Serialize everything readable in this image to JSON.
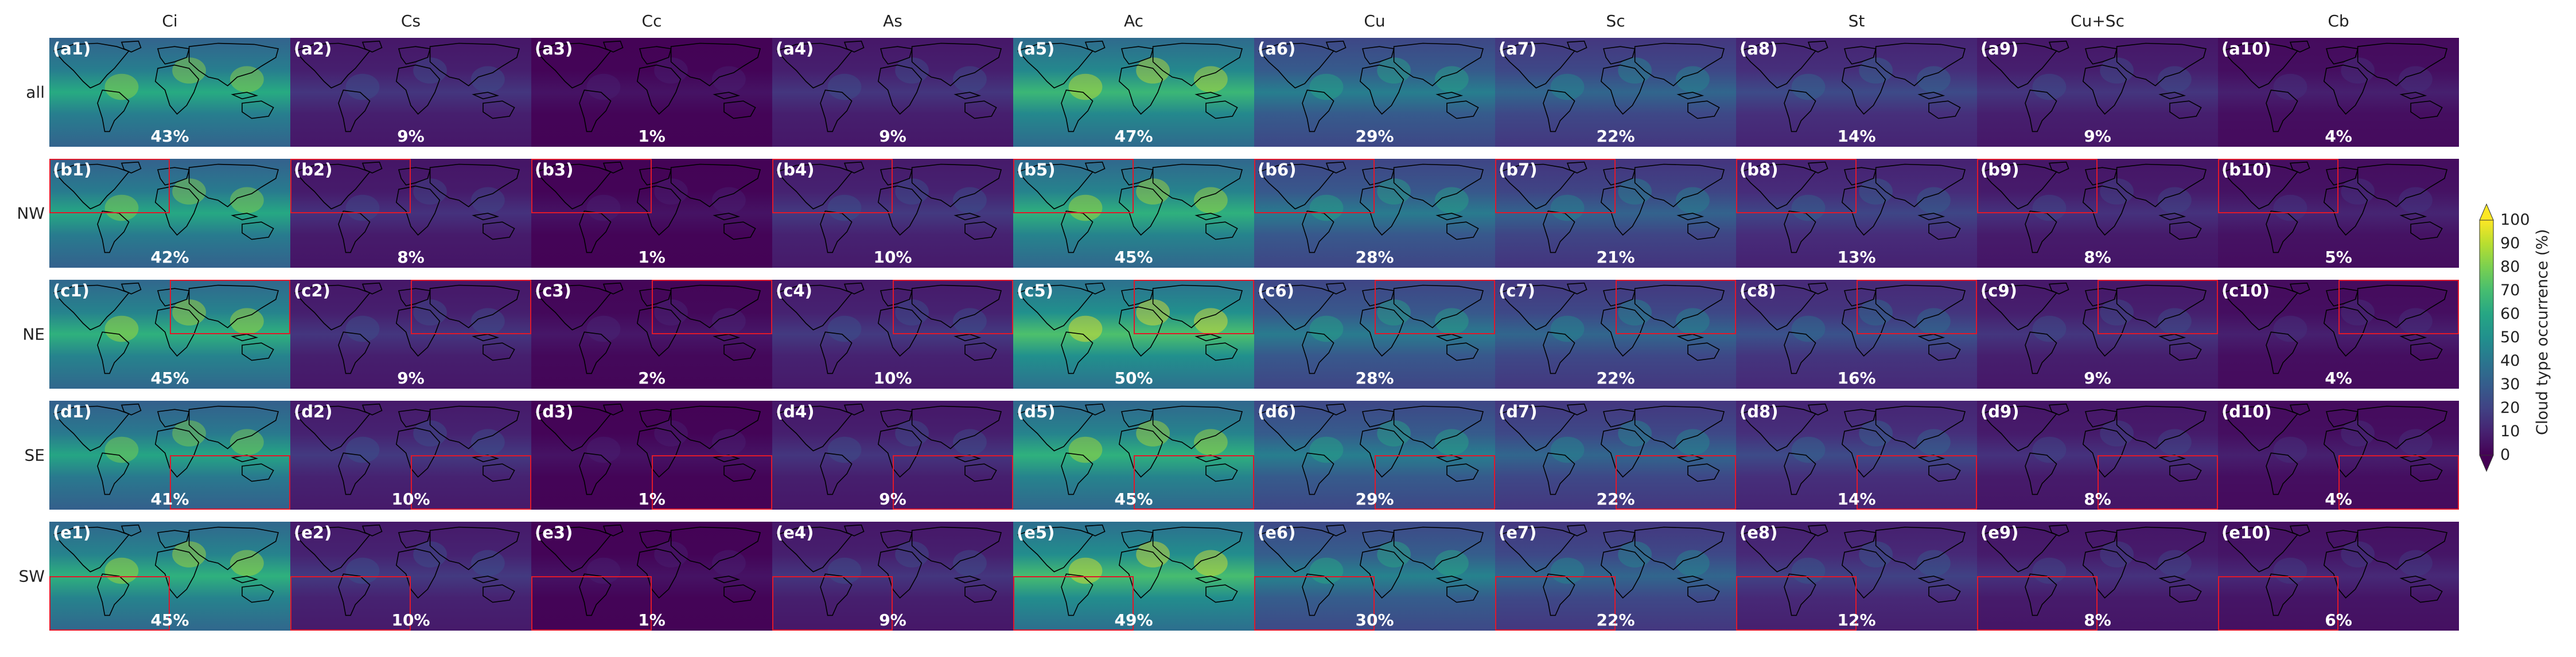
{
  "chart_data": {
    "type": "heatmap",
    "columns": [
      "Ci",
      "Cs",
      "Cc",
      "As",
      "Ac",
      "Cu",
      "Sc",
      "St",
      "Cu+Sc",
      "Cb"
    ],
    "rows": [
      "all",
      "NW",
      "NE",
      "SE",
      "SW"
    ],
    "row_letters": [
      "a",
      "b",
      "c",
      "d",
      "e"
    ],
    "values": [
      [
        43,
        9,
        1,
        9,
        47,
        29,
        22,
        14,
        9,
        4
      ],
      [
        42,
        8,
        1,
        10,
        45,
        28,
        21,
        13,
        8,
        5
      ],
      [
        45,
        9,
        2,
        10,
        50,
        28,
        22,
        16,
        9,
        4
      ],
      [
        41,
        10,
        1,
        9,
        45,
        29,
        22,
        14,
        8,
        4
      ],
      [
        45,
        10,
        1,
        9,
        49,
        30,
        22,
        12,
        8,
        6
      ]
    ],
    "value_suffix": "%",
    "region_boxes": [
      null,
      "NW",
      "NE",
      "SE",
      "SW"
    ],
    "colorbar": {
      "label": "Cloud type occurrence (%)",
      "ticks": [
        0,
        10,
        20,
        30,
        40,
        50,
        60,
        70,
        80,
        90,
        100
      ],
      "range": [
        0,
        100
      ],
      "colormap": "viridis",
      "extend": "both"
    },
    "colors": {
      "region_box": "#e0182b",
      "coastline": "#000000",
      "label_text": "#ffffff"
    }
  }
}
